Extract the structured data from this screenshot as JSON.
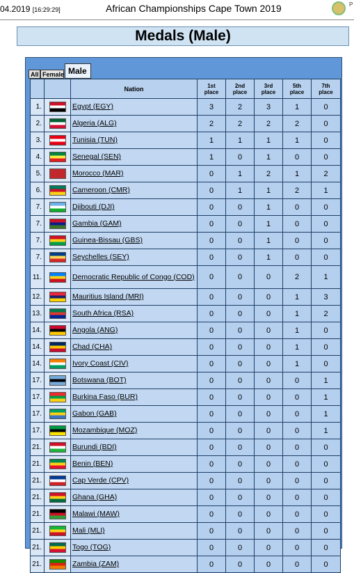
{
  "header": {
    "date": "04.2019",
    "time": "[16:29:29]",
    "title": "African Championships Cape Town 2019",
    "corner_text": "P"
  },
  "page_title": "Medals (Male)",
  "tabs": [
    {
      "label": "All"
    },
    {
      "label": "Female"
    },
    {
      "label": "Male",
      "active": true
    }
  ],
  "columns": {
    "nation": "Nation",
    "places": [
      {
        "num": "1st",
        "word": "place"
      },
      {
        "num": "2nd",
        "word": "place"
      },
      {
        "num": "3rd",
        "word": "place"
      },
      {
        "num": "5th",
        "word": "place"
      },
      {
        "num": "7th",
        "word": "place"
      }
    ]
  },
  "rows": [
    {
      "rank": "1.",
      "nation": "Egypt (EGY)",
      "flag": "egypt-flag-icon",
      "colors": [
        "#ce1126",
        "#ffffff",
        "#000000"
      ],
      "values": [
        "3",
        "2",
        "3",
        "1",
        "0"
      ]
    },
    {
      "rank": "2.",
      "nation": "Algeria (ALG)",
      "flag": "algeria-flag-icon",
      "colors": [
        "#006233",
        "#ffffff",
        "#d21034"
      ],
      "values": [
        "2",
        "2",
        "2",
        "2",
        "0"
      ]
    },
    {
      "rank": "3.",
      "nation": "Tunisia (TUN)",
      "flag": "tunisia-flag-icon",
      "colors": [
        "#e70013",
        "#ffffff",
        "#e70013"
      ],
      "values": [
        "1",
        "1",
        "1",
        "1",
        "0"
      ]
    },
    {
      "rank": "4.",
      "nation": "Senegal (SEN)",
      "flag": "senegal-flag-icon",
      "colors": [
        "#00853f",
        "#fdef42",
        "#e31b23"
      ],
      "values": [
        "1",
        "0",
        "1",
        "0",
        "0"
      ]
    },
    {
      "rank": "5.",
      "nation": "Morocco (MAR)",
      "flag": "morocco-flag-icon",
      "colors": [
        "#c1272d",
        "#c1272d",
        "#c1272d"
      ],
      "values": [
        "0",
        "1",
        "2",
        "1",
        "2"
      ]
    },
    {
      "rank": "6.",
      "nation": "Cameroon (CMR)",
      "flag": "cameroon-flag-icon",
      "colors": [
        "#007a5e",
        "#ce1126",
        "#fcd116"
      ],
      "values": [
        "0",
        "1",
        "1",
        "2",
        "1"
      ]
    },
    {
      "rank": "7.",
      "nation": "Djibouti (DJI)",
      "flag": "djibouti-flag-icon",
      "colors": [
        "#6ab2e7",
        "#ffffff",
        "#12ad2b"
      ],
      "values": [
        "0",
        "0",
        "1",
        "0",
        "0"
      ]
    },
    {
      "rank": "7.",
      "nation": "Gambia (GAM)",
      "flag": "gambia-flag-icon",
      "colors": [
        "#ce1126",
        "#0c1c8c",
        "#3a7728"
      ],
      "values": [
        "0",
        "0",
        "1",
        "0",
        "0"
      ]
    },
    {
      "rank": "7.",
      "nation": "Guinea-Bissau (GBS)",
      "flag": "guinea-bissau-flag-icon",
      "colors": [
        "#ce1126",
        "#fcd116",
        "#009e49"
      ],
      "values": [
        "0",
        "0",
        "1",
        "0",
        "0"
      ]
    },
    {
      "rank": "7.",
      "nation": "Seychelles (SEY)",
      "flag": "seychelles-flag-icon",
      "colors": [
        "#003f87",
        "#fcd856",
        "#d62828"
      ],
      "values": [
        "0",
        "0",
        "1",
        "0",
        "0"
      ]
    },
    {
      "rank": "11.",
      "nation": "Democratic Republic of Congo (COD)",
      "flag": "dr-congo-flag-icon",
      "colors": [
        "#007fff",
        "#f7d618",
        "#ce1021"
      ],
      "values": [
        "0",
        "0",
        "0",
        "2",
        "1"
      ],
      "tall": true
    },
    {
      "rank": "12.",
      "nation": "Mauritius Island (MRI)",
      "flag": "mauritius-flag-icon",
      "colors": [
        "#ea2839",
        "#1a206d",
        "#ffd500"
      ],
      "values": [
        "0",
        "0",
        "0",
        "1",
        "3"
      ]
    },
    {
      "rank": "13.",
      "nation": "South Africa (RSA)",
      "flag": "south-africa-flag-icon",
      "colors": [
        "#007a4d",
        "#de3831",
        "#002395"
      ],
      "values": [
        "0",
        "0",
        "0",
        "1",
        "2"
      ]
    },
    {
      "rank": "14.",
      "nation": "Angola (ANG)",
      "flag": "angola-flag-icon",
      "colors": [
        "#cc092f",
        "#000000",
        "#ffcb00"
      ],
      "values": [
        "0",
        "0",
        "0",
        "1",
        "0"
      ]
    },
    {
      "rank": "14.",
      "nation": "Chad (CHA)",
      "flag": "chad-flag-icon",
      "colors": [
        "#002664",
        "#fecb00",
        "#c60c30"
      ],
      "values": [
        "0",
        "0",
        "0",
        "1",
        "0"
      ]
    },
    {
      "rank": "14.",
      "nation": "Ivory Coast (CIV)",
      "flag": "ivory-coast-flag-icon",
      "colors": [
        "#f77f00",
        "#ffffff",
        "#009e60"
      ],
      "values": [
        "0",
        "0",
        "0",
        "1",
        "0"
      ]
    },
    {
      "rank": "17.",
      "nation": "Botswana (BOT)",
      "flag": "botswana-flag-icon",
      "colors": [
        "#75aadb",
        "#000000",
        "#75aadb"
      ],
      "values": [
        "0",
        "0",
        "0",
        "0",
        "1"
      ]
    },
    {
      "rank": "17.",
      "nation": "Burkina Faso (BUR)",
      "flag": "burkina-faso-flag-icon",
      "colors": [
        "#ef2b2d",
        "#009e49",
        "#fcd116"
      ],
      "values": [
        "0",
        "0",
        "0",
        "0",
        "1"
      ]
    },
    {
      "rank": "17.",
      "nation": "Gabon (GAB)",
      "flag": "gabon-flag-icon",
      "colors": [
        "#009e60",
        "#fcd116",
        "#3a75c4"
      ],
      "values": [
        "0",
        "0",
        "0",
        "0",
        "1"
      ]
    },
    {
      "rank": "17.",
      "nation": "Mozambique (MOZ)",
      "flag": "mozambique-flag-icon",
      "colors": [
        "#009a44",
        "#000000",
        "#fce100"
      ],
      "values": [
        "0",
        "0",
        "0",
        "0",
        "1"
      ]
    },
    {
      "rank": "21.",
      "nation": "Burundi (BDI)",
      "flag": "burundi-flag-icon",
      "colors": [
        "#ce1126",
        "#ffffff",
        "#1eb53a"
      ],
      "values": [
        "0",
        "0",
        "0",
        "0",
        "0"
      ]
    },
    {
      "rank": "21.",
      "nation": "Benin (BEN)",
      "flag": "benin-flag-icon",
      "colors": [
        "#008751",
        "#fcd116",
        "#e8112d"
      ],
      "values": [
        "0",
        "0",
        "0",
        "0",
        "0"
      ]
    },
    {
      "rank": "21.",
      "nation": "Cap Verde (CPV)",
      "flag": "cape-verde-flag-icon",
      "colors": [
        "#003893",
        "#ffffff",
        "#cf2027"
      ],
      "values": [
        "0",
        "0",
        "0",
        "0",
        "0"
      ]
    },
    {
      "rank": "21.",
      "nation": "Ghana (GHA)",
      "flag": "ghana-flag-icon",
      "colors": [
        "#ce1126",
        "#fcd116",
        "#006b3f"
      ],
      "values": [
        "0",
        "0",
        "0",
        "0",
        "0"
      ]
    },
    {
      "rank": "21.",
      "nation": "Malawi (MAW)",
      "flag": "malawi-flag-icon",
      "colors": [
        "#000000",
        "#ce1126",
        "#339e35"
      ],
      "values": [
        "0",
        "0",
        "0",
        "0",
        "0"
      ]
    },
    {
      "rank": "21.",
      "nation": "Mali (MLI)",
      "flag": "mali-flag-icon",
      "colors": [
        "#14b53a",
        "#fcd116",
        "#ce1126"
      ],
      "values": [
        "0",
        "0",
        "0",
        "0",
        "0"
      ]
    },
    {
      "rank": "21.",
      "nation": "Togo (TOG)",
      "flag": "togo-flag-icon",
      "colors": [
        "#006a4e",
        "#ffce00",
        "#d21034"
      ],
      "values": [
        "0",
        "0",
        "0",
        "0",
        "0"
      ]
    },
    {
      "rank": "21.",
      "nation": "Zambia (ZAM)",
      "flag": "zambia-flag-icon",
      "colors": [
        "#198a00",
        "#de2010",
        "#ef7d00"
      ],
      "values": [
        "0",
        "0",
        "0",
        "0",
        "0"
      ]
    }
  ]
}
